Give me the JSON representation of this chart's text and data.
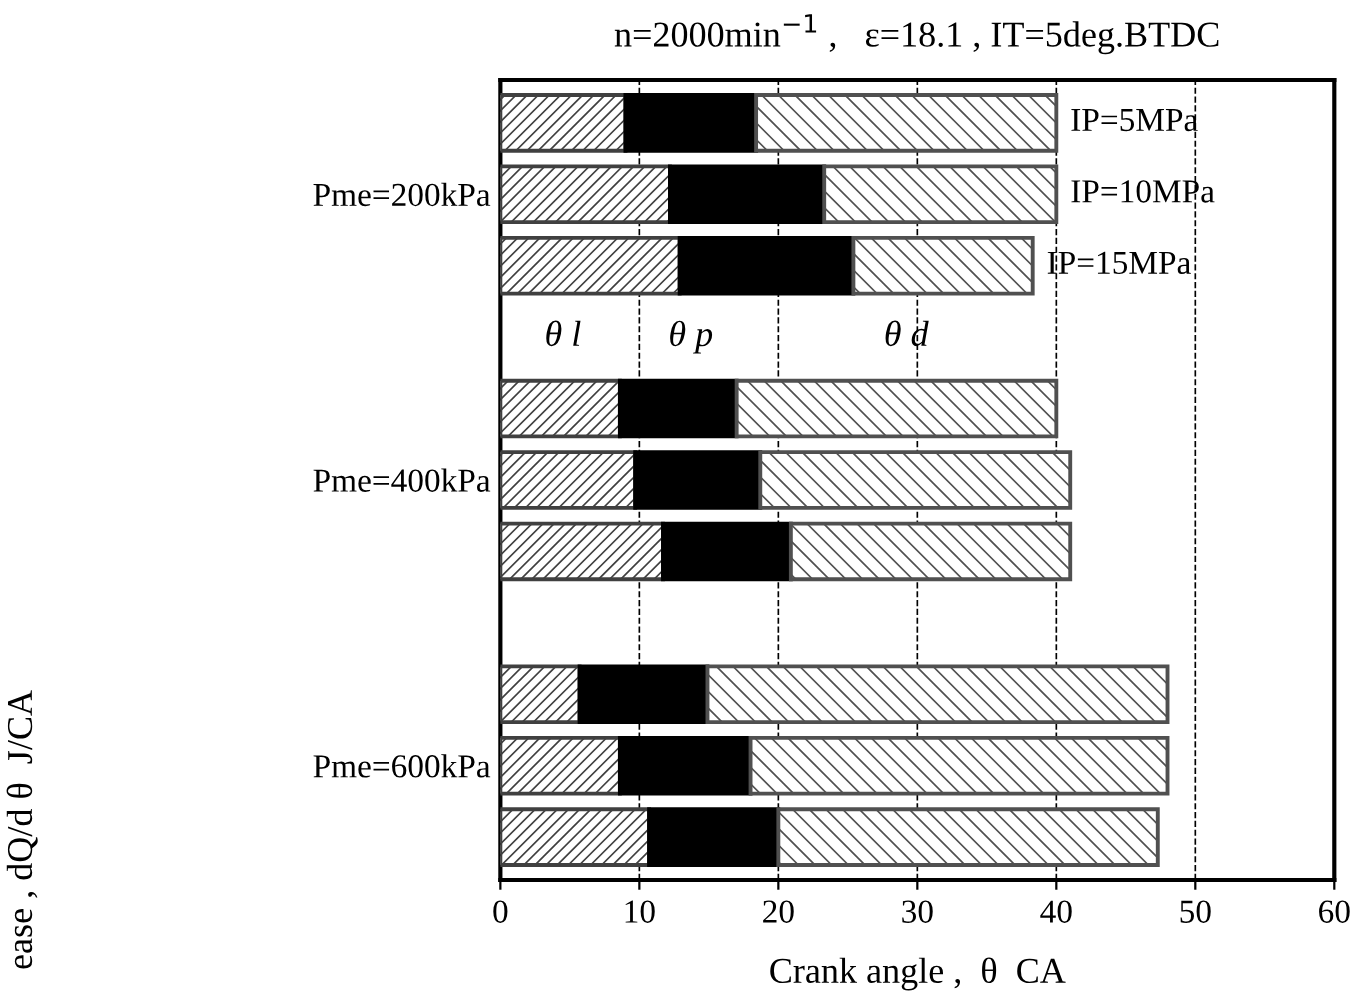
{
  "chart_data": {
    "type": "bar",
    "orientation": "horizontal",
    "stacked": true,
    "title": "n=2000min$^{−1}$ ,   ε=18.1 , IT=5deg.BTDC",
    "xlabel": "Crank angle ,  θ  CA",
    "categories": [
      null,
      "Pme=200kPa",
      null,
      null,
      null,
      "Pme=400kPa",
      null,
      null,
      null,
      "Pme=600kPa",
      null
    ],
    "series": [
      {
        "name": "θ l",
        "color": "#404040",
        "values": [
          9.0,
          12.2,
          12.9,
          null,
          8.6,
          9.7,
          11.7,
          null,
          5.7,
          8.6,
          10.7
        ]
      },
      {
        "name": "θ p",
        "color": "#000000",
        "values": [
          9.4,
          11.1,
          12.5,
          null,
          8.4,
          9.0,
          9.2,
          null,
          9.2,
          9.4,
          9.3
        ]
      },
      {
        "name": "θ d",
        "color": "#505050",
        "values": [
          21.6,
          16.7,
          12.9,
          null,
          23.0,
          22.3,
          20.1,
          null,
          33.1,
          30.0,
          27.3
        ]
      }
    ],
    "annotations": [
      "IP=5MPa",
      "IP=10MPa",
      "IP=15MPa",
      "ease , dQ/d θ  J/CA"
    ],
    "xlim": [
      0,
      60
    ],
    "xticks": [
      0,
      10,
      20,
      30,
      40,
      50,
      60
    ],
    "grid": "x",
    "line_style": "dashed"
  }
}
